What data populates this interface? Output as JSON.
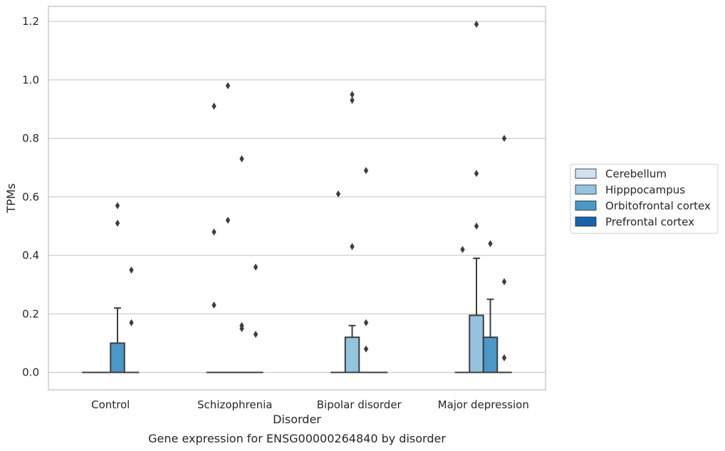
{
  "chart_data": {
    "type": "box",
    "xlabel": "Disorder",
    "ylabel": "TPMs",
    "caption": "Gene expression for ENSG00000264840 by disorder",
    "ylim": [
      -0.06,
      1.25
    ],
    "yticks": [
      0.0,
      0.2,
      0.4,
      0.6,
      0.8,
      1.0,
      1.2
    ],
    "ytick_labels": [
      "0.0",
      "0.2",
      "0.4",
      "0.6",
      "0.8",
      "1.0",
      "1.2"
    ],
    "grid": true,
    "legend_position": "right",
    "categories": [
      "Control",
      "Schizophrenia",
      "Bipolar disorder",
      "Major depression"
    ],
    "series": [
      {
        "name": "Cerebellum",
        "color": "#d0e1f2",
        "boxes": [
          {
            "q1": 0,
            "median": 0,
            "q3": 0,
            "whisker_low": 0,
            "whisker_high": 0,
            "outliers": []
          },
          {
            "q1": 0,
            "median": 0,
            "q3": 0,
            "whisker_low": 0,
            "whisker_high": 0,
            "outliers": [
              0.91,
              0.48,
              0.23
            ]
          },
          {
            "q1": 0,
            "median": 0,
            "q3": 0,
            "whisker_low": 0,
            "whisker_high": 0,
            "outliers": [
              0.61
            ]
          },
          {
            "q1": 0,
            "median": 0,
            "q3": 0,
            "whisker_low": 0,
            "whisker_high": 0,
            "outliers": [
              0.42
            ]
          }
        ]
      },
      {
        "name": "Hipppocampus",
        "color": "#94c4df",
        "boxes": [
          {
            "q1": 0,
            "median": 0,
            "q3": 0,
            "whisker_low": 0,
            "whisker_high": 0,
            "outliers": []
          },
          {
            "q1": 0,
            "median": 0,
            "q3": 0,
            "whisker_low": 0,
            "whisker_high": 0,
            "outliers": [
              0.98,
              0.52
            ]
          },
          {
            "q1": 0,
            "median": 0,
            "q3": 0.12,
            "whisker_low": 0,
            "whisker_high": 0.16,
            "outliers": [
              0.95,
              0.93,
              0.43
            ]
          },
          {
            "q1": 0,
            "median": 0,
            "q3": 0.195,
            "whisker_low": 0,
            "whisker_high": 0.39,
            "outliers": [
              1.19,
              0.68,
              0.5
            ]
          }
        ]
      },
      {
        "name": "Orbitofrontal cortex",
        "color": "#4a98c9",
        "boxes": [
          {
            "q1": 0,
            "median": 0,
            "q3": 0.1,
            "whisker_low": 0,
            "whisker_high": 0.22,
            "outliers": [
              0.57,
              0.51
            ]
          },
          {
            "q1": 0,
            "median": 0,
            "q3": 0,
            "whisker_low": 0,
            "whisker_high": 0,
            "outliers": [
              0.73,
              0.16,
              0.15
            ]
          },
          {
            "q1": 0,
            "median": 0,
            "q3": 0,
            "whisker_low": 0,
            "whisker_high": 0,
            "outliers": [
              0.69,
              0.17,
              0.08
            ]
          },
          {
            "q1": 0,
            "median": 0,
            "q3": 0.12,
            "whisker_low": 0,
            "whisker_high": 0.25,
            "outliers": [
              0.44
            ]
          }
        ]
      },
      {
        "name": "Prefrontal cortex",
        "color": "#1764ab",
        "boxes": [
          {
            "q1": 0,
            "median": 0,
            "q3": 0,
            "whisker_low": 0,
            "whisker_high": 0,
            "outliers": [
              0.35,
              0.17
            ]
          },
          {
            "q1": 0,
            "median": 0,
            "q3": 0,
            "whisker_low": 0,
            "whisker_high": 0,
            "outliers": [
              0.36,
              0.13
            ]
          },
          {
            "q1": 0,
            "median": 0,
            "q3": 0,
            "whisker_low": 0,
            "whisker_high": 0,
            "outliers": []
          },
          {
            "q1": 0,
            "median": 0,
            "q3": 0,
            "whisker_low": 0,
            "whisker_high": 0,
            "outliers": [
              0.8,
              0.31,
              0.05
            ]
          }
        ]
      }
    ],
    "colors": {
      "grid": "#cccccc",
      "frame": "#cccccc",
      "box_edge": "#3d3d3d",
      "outlier": "#3d3d3d"
    }
  }
}
